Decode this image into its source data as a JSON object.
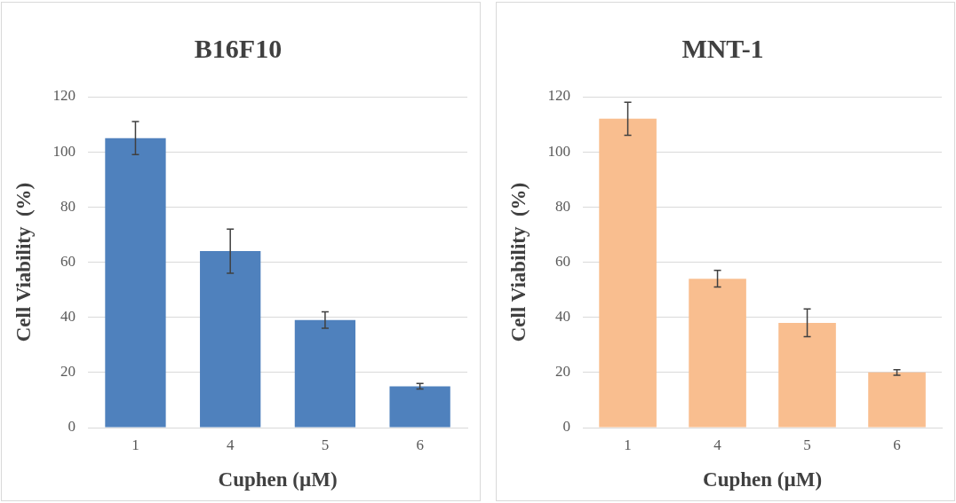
{
  "chart_data": [
    {
      "type": "bar",
      "title": "B16F10",
      "xlabel": "Cuphen (µM)",
      "ylabel": "Cell Viability  (%)",
      "categories": [
        "1",
        "4",
        "5",
        "6"
      ],
      "values": [
        105,
        64,
        39,
        15
      ],
      "errors": [
        6,
        8,
        3,
        1
      ],
      "color": "#4f81bd",
      "ylim": [
        0,
        120
      ],
      "yticks": [
        0,
        20,
        40,
        60,
        80,
        100,
        120
      ],
      "grid": "y"
    },
    {
      "type": "bar",
      "title": "MNT-1",
      "xlabel": "Cuphen (µM)",
      "ylabel": "Cell Viability  (%)",
      "categories": [
        "1",
        "4",
        "5",
        "6"
      ],
      "values": [
        112,
        54,
        38,
        20
      ],
      "errors": [
        6,
        3,
        5,
        1
      ],
      "color": "#f9be8f",
      "ylim": [
        0,
        120
      ],
      "yticks": [
        0,
        20,
        40,
        60,
        80,
        100,
        120
      ],
      "grid": "y"
    }
  ]
}
